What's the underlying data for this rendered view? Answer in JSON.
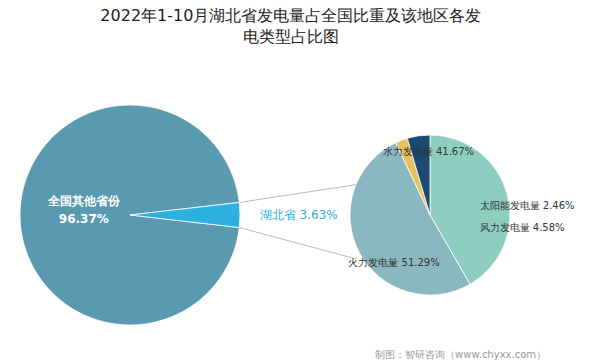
{
  "chart_data": [
    {
      "type": "pie",
      "title": "2022年1-10月湖北省发电量占全国比重及该地区各发\n电类型占比图",
      "values": [
        96.37,
        3.63
      ],
      "value_labels": [
        "全国其他省份\n96.37%",
        "湖北省 3.63%"
      ],
      "colors": [
        "#5a9ab0",
        "#2bb0e0"
      ],
      "data_labels": true
    },
    {
      "type": "pie",
      "values": [
        41.67,
        51.29,
        2.46,
        4.58
      ],
      "value_labels": [
        "水力发电量 41.67%",
        "火力发电量 51.29%",
        "太阳能发电量 2.46%",
        "风力发电量 4.58%"
      ],
      "colors": [
        "#8ecec0",
        "#8ab8c0",
        "#e8c060",
        "#1a4a72"
      ],
      "data_labels": true,
      "annotations": [
        "制图：智研咨询（www.chyxx.com）"
      ]
    }
  ]
}
